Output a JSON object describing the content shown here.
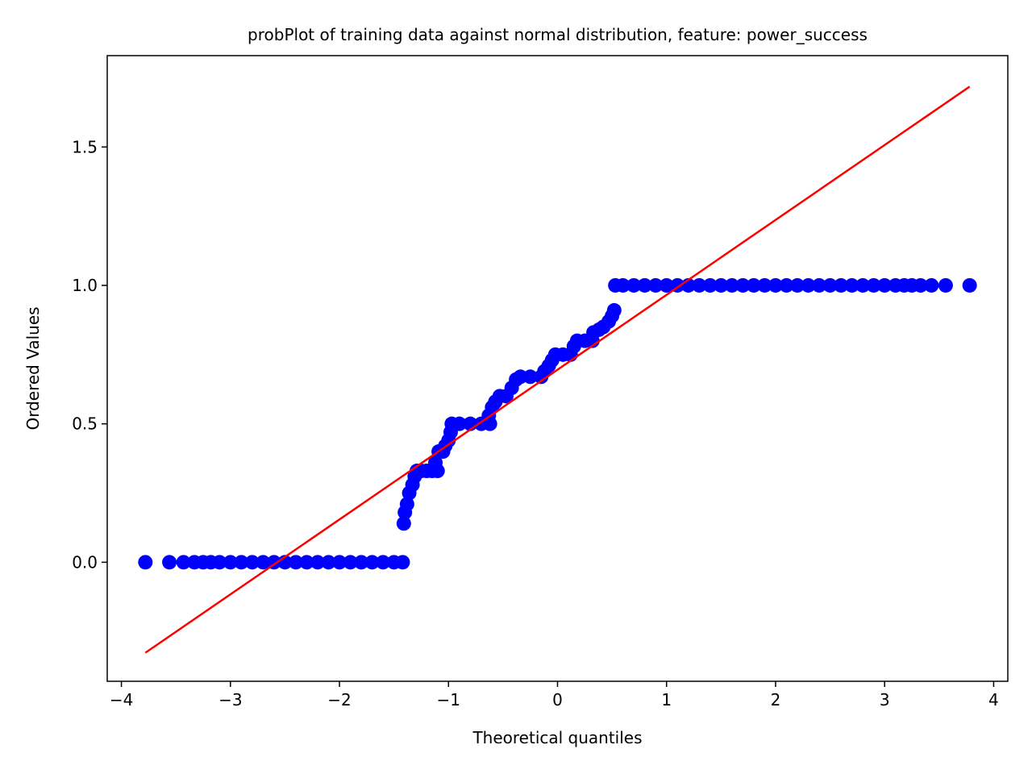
{
  "chart_data": {
    "type": "scatter",
    "title": "probPlot of training data against normal distribution, feature: power_success",
    "xlabel": "Theoretical quantiles",
    "ylabel": "Ordered Values",
    "xlim": [
      -4.13,
      4.13
    ],
    "ylim": [
      -0.43,
      1.83
    ],
    "xticks": [
      -4,
      -3,
      -2,
      -1,
      0,
      1,
      2,
      3,
      4
    ],
    "xtick_labels": [
      "−4",
      "−3",
      "−2",
      "−1",
      "0",
      "1",
      "2",
      "3",
      "4"
    ],
    "yticks": [
      0.0,
      0.5,
      1.0,
      1.5
    ],
    "ytick_labels": [
      "0.0",
      "0.5",
      "1.0",
      "1.5"
    ],
    "grid": false,
    "colors": {
      "points": "#0000ff",
      "fit_line": "#ff0000",
      "axes": "#000000"
    },
    "scatter_series": [
      {
        "points": [
          [
            -3.78,
            0.0
          ],
          [
            -3.56,
            0.0
          ],
          [
            -3.43,
            0.0
          ],
          [
            -3.33,
            0.0
          ],
          [
            -3.25,
            0.0
          ],
          [
            -3.18,
            0.0
          ],
          [
            -3.1,
            0.0
          ],
          [
            -3.0,
            0.0
          ],
          [
            -2.9,
            0.0
          ],
          [
            -2.8,
            0.0
          ],
          [
            -2.7,
            0.0
          ],
          [
            -2.6,
            0.0
          ],
          [
            -2.5,
            0.0
          ],
          [
            -2.4,
            0.0
          ],
          [
            -2.3,
            0.0
          ],
          [
            -2.2,
            0.0
          ],
          [
            -2.1,
            0.0
          ],
          [
            -2.0,
            0.0
          ],
          [
            -1.9,
            0.0
          ],
          [
            -1.8,
            0.0
          ],
          [
            -1.7,
            0.0
          ],
          [
            -1.6,
            0.0
          ],
          [
            -1.5,
            0.0
          ],
          [
            -1.42,
            0.0
          ],
          [
            -1.41,
            0.14
          ],
          [
            -1.4,
            0.18
          ],
          [
            -1.38,
            0.21
          ],
          [
            -1.36,
            0.25
          ],
          [
            -1.33,
            0.28
          ],
          [
            -1.31,
            0.31
          ],
          [
            -1.29,
            0.33
          ],
          [
            -1.25,
            0.33
          ],
          [
            -1.2,
            0.33
          ],
          [
            -1.15,
            0.33
          ],
          [
            -1.1,
            0.33
          ],
          [
            -1.12,
            0.36
          ],
          [
            -1.09,
            0.4
          ],
          [
            -1.05,
            0.4
          ],
          [
            -1.03,
            0.42
          ],
          [
            -1.0,
            0.44
          ],
          [
            -0.98,
            0.47
          ],
          [
            -0.97,
            0.5
          ],
          [
            -0.9,
            0.5
          ],
          [
            -0.8,
            0.5
          ],
          [
            -0.7,
            0.5
          ],
          [
            -0.62,
            0.5
          ],
          [
            -0.63,
            0.53
          ],
          [
            -0.6,
            0.56
          ],
          [
            -0.57,
            0.58
          ],
          [
            -0.53,
            0.6
          ],
          [
            -0.47,
            0.6
          ],
          [
            -0.42,
            0.63
          ],
          [
            -0.38,
            0.66
          ],
          [
            -0.34,
            0.67
          ],
          [
            -0.25,
            0.67
          ],
          [
            -0.15,
            0.67
          ],
          [
            -0.12,
            0.69
          ],
          [
            -0.08,
            0.71
          ],
          [
            -0.05,
            0.73
          ],
          [
            -0.02,
            0.75
          ],
          [
            0.05,
            0.75
          ],
          [
            0.12,
            0.75
          ],
          [
            0.15,
            0.78
          ],
          [
            0.18,
            0.8
          ],
          [
            0.25,
            0.8
          ],
          [
            0.32,
            0.8
          ],
          [
            0.33,
            0.83
          ],
          [
            0.38,
            0.84
          ],
          [
            0.42,
            0.85
          ],
          [
            0.47,
            0.87
          ],
          [
            0.5,
            0.89
          ],
          [
            0.52,
            0.91
          ],
          [
            0.53,
            1.0
          ],
          [
            0.6,
            1.0
          ],
          [
            0.7,
            1.0
          ],
          [
            0.8,
            1.0
          ],
          [
            0.9,
            1.0
          ],
          [
            1.0,
            1.0
          ],
          [
            1.1,
            1.0
          ],
          [
            1.2,
            1.0
          ],
          [
            1.3,
            1.0
          ],
          [
            1.4,
            1.0
          ],
          [
            1.5,
            1.0
          ],
          [
            1.6,
            1.0
          ],
          [
            1.7,
            1.0
          ],
          [
            1.8,
            1.0
          ],
          [
            1.9,
            1.0
          ],
          [
            2.0,
            1.0
          ],
          [
            2.1,
            1.0
          ],
          [
            2.2,
            1.0
          ],
          [
            2.3,
            1.0
          ],
          [
            2.4,
            1.0
          ],
          [
            2.5,
            1.0
          ],
          [
            2.6,
            1.0
          ],
          [
            2.7,
            1.0
          ],
          [
            2.8,
            1.0
          ],
          [
            2.9,
            1.0
          ],
          [
            3.0,
            1.0
          ],
          [
            3.1,
            1.0
          ],
          [
            3.18,
            1.0
          ],
          [
            3.25,
            1.0
          ],
          [
            3.33,
            1.0
          ],
          [
            3.43,
            1.0
          ],
          [
            3.56,
            1.0
          ],
          [
            3.78,
            1.0
          ]
        ]
      }
    ],
    "fit_line": {
      "x": [
        -3.78,
        3.78
      ],
      "y": [
        -0.327,
        1.718
      ]
    }
  }
}
